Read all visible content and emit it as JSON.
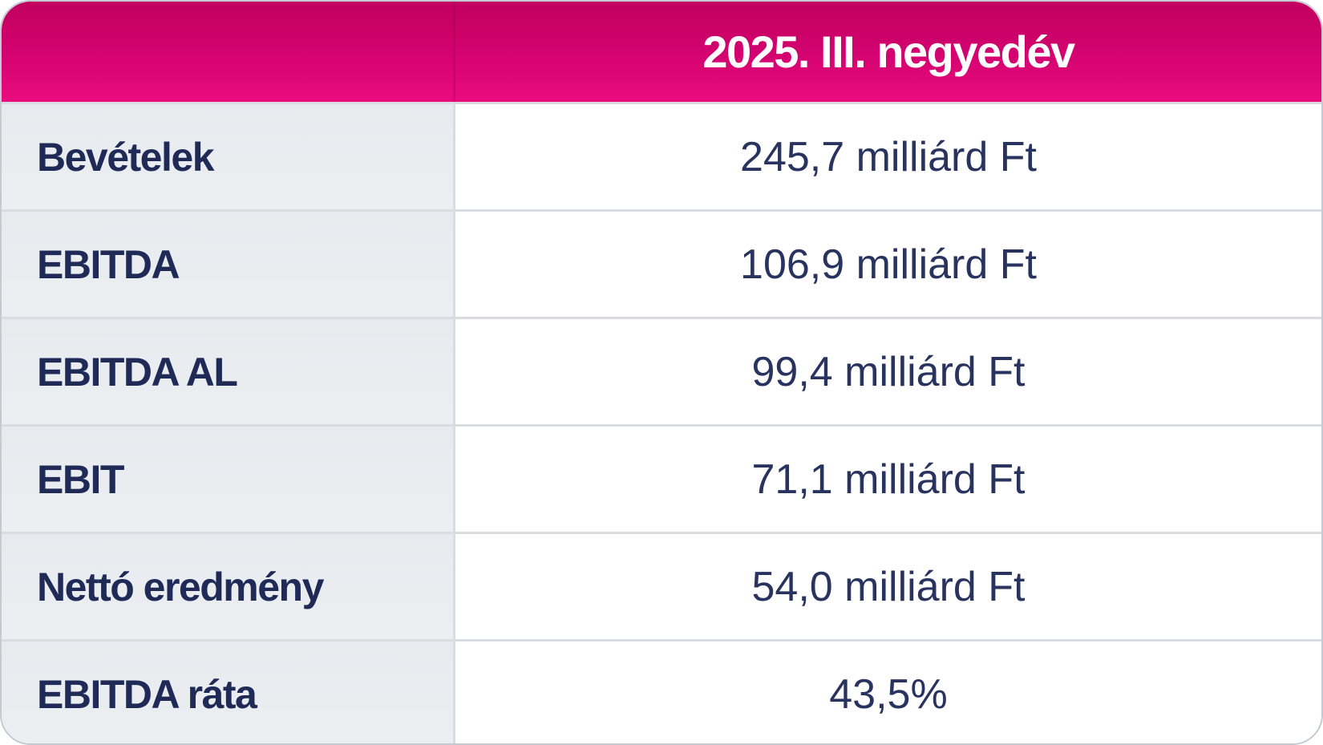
{
  "table": {
    "header": {
      "corner_label": "",
      "period": "2025. III. negyedév"
    },
    "rows": [
      {
        "label": "Bevételek",
        "value": "245,7 milliárd Ft"
      },
      {
        "label": "EBITDA",
        "value": "106,9 milliárd Ft"
      },
      {
        "label": "EBITDA AL",
        "value": "99,4 milliárd Ft"
      },
      {
        "label": "EBIT",
        "value": "71,1 milliárd Ft"
      },
      {
        "label": "Nettó eredmény",
        "value": "54,0 milliárd Ft"
      },
      {
        "label": "EBITDA ráta",
        "value": "43,5%"
      }
    ]
  },
  "chart_data": {
    "type": "table",
    "title": "2025. III. negyedév",
    "columns": [
      "",
      "2025. III. negyedév"
    ],
    "rows": [
      [
        "Bevételek",
        "245,7 milliárd Ft"
      ],
      [
        "EBITDA",
        "106,9 milliárd Ft"
      ],
      [
        "EBITDA AL",
        "99,4 milliárd Ft"
      ],
      [
        "EBIT",
        "71,1 milliárd Ft"
      ],
      [
        "Nettó eredmény",
        "54,0 milliárd Ft"
      ],
      [
        "EBITDA ráta",
        "43,5%"
      ]
    ],
    "metrics": [
      {
        "name": "Bevételek",
        "value": 245.7,
        "unit": "milliárd Ft"
      },
      {
        "name": "EBITDA",
        "value": 106.9,
        "unit": "milliárd Ft"
      },
      {
        "name": "EBITDA AL",
        "value": 99.4,
        "unit": "milliárd Ft"
      },
      {
        "name": "EBIT",
        "value": 71.1,
        "unit": "milliárd Ft"
      },
      {
        "name": "Nettó eredmény",
        "value": 54.0,
        "unit": "milliárd Ft"
      },
      {
        "name": "EBITDA ráta",
        "value": 43.5,
        "unit": "%"
      }
    ]
  },
  "colors": {
    "header_gradient_top": "#c1005f",
    "header_gradient_bottom": "#ea0d7f",
    "label_column_background": "#e9ecf0",
    "value_column_background": "#ffffff",
    "grid_line": "#d9dde2",
    "outer_border": "#c4cad2",
    "label_text": "#1f2a57",
    "value_text": "#29335f",
    "header_text": "#ffffff"
  }
}
